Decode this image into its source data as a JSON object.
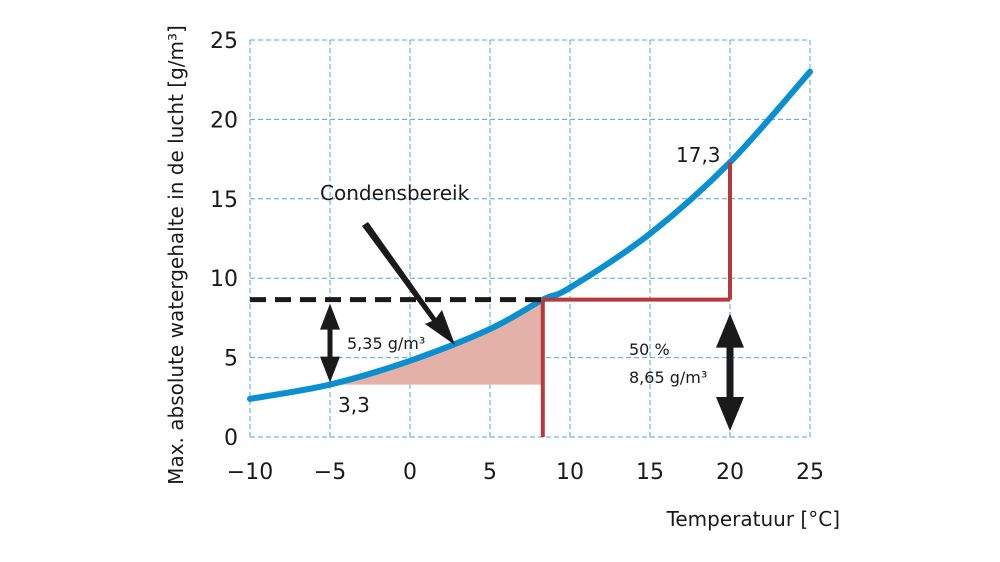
{
  "chart_data": {
    "type": "line",
    "xlabel": "Temperatuur [°C]",
    "ylabel": "Max. absolute watergehalte in de lucht [g/m³]",
    "xlim": [
      -10,
      25
    ],
    "ylim": [
      0,
      25
    ],
    "x_ticks": [
      -10,
      -5,
      0,
      5,
      10,
      15,
      20,
      25
    ],
    "y_ticks": [
      0,
      5,
      10,
      15,
      20,
      25
    ],
    "x_tick_labels": [
      "−10",
      "−5",
      "0",
      "5",
      "10",
      "15",
      "20",
      "25"
    ],
    "y_tick_labels": [
      "0",
      "5",
      "10",
      "15",
      "20",
      "25"
    ],
    "grid": true,
    "colors": {
      "curve": "#0a8fd0",
      "grid": "#4aa9d8",
      "marker": "#b5393d",
      "region": "#e3b1a8",
      "arrow": "#1a1a1a"
    },
    "series": [
      {
        "x": [
          -10,
          -5,
          0,
          5,
          8.3,
          10,
          15,
          20,
          25
        ],
        "values": [
          2.4,
          3.3,
          4.8,
          6.8,
          8.65,
          9.4,
          12.8,
          17.3,
          23.0
        ]
      }
    ],
    "annotations": {
      "region_label": "Condensbereik",
      "point_high_label": "17,3",
      "point_low_label": "3,3",
      "diff_label": "5,35 g/m³",
      "rh_label": "50 %",
      "abs_label": "8,65 g/m³",
      "dew_point_x": 8.3,
      "dew_value": 8.65,
      "high_x": 20,
      "high_value": 17.3,
      "low_x": -5,
      "low_value": 3.3
    }
  }
}
